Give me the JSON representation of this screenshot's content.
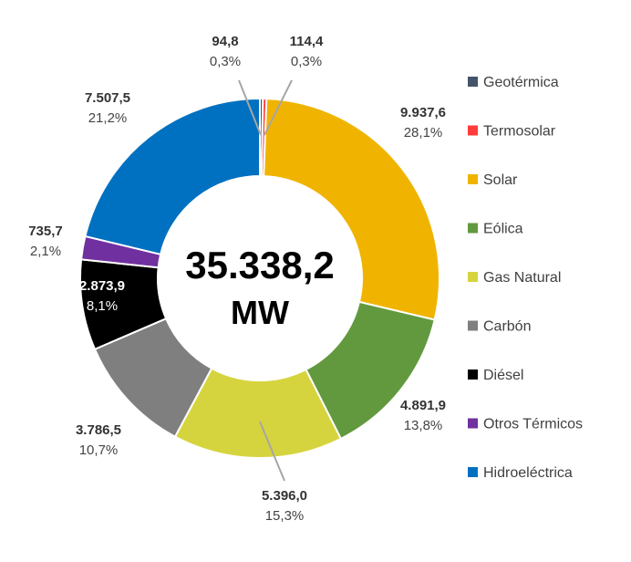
{
  "chart_data": {
    "type": "pie",
    "variant": "donut",
    "center_value": "35.338,2",
    "center_unit": "MW",
    "legend_position": "right",
    "series": [
      {
        "name": "Geotérmica",
        "value": 94.8,
        "value_label": "94,8",
        "pct_label": "0,3%",
        "color": "#44546A"
      },
      {
        "name": "Termosolar",
        "value": 114.4,
        "value_label": "114,4",
        "pct_label": "0,3%",
        "color": "#FF3B3B"
      },
      {
        "name": "Solar",
        "value": 9937.6,
        "value_label": "9.937,6",
        "pct_label": "28,1%",
        "color": "#F0B400"
      },
      {
        "name": "Eólica",
        "value": 4891.9,
        "value_label": "4.891,9",
        "pct_label": "13,8%",
        "color": "#62993E"
      },
      {
        "name": "Gas Natural",
        "value": 5396.0,
        "value_label": "5.396,0",
        "pct_label": "15,3%",
        "color": "#D6D43E"
      },
      {
        "name": "Carbón",
        "value": 3786.5,
        "value_label": "3.786,5",
        "pct_label": "10,7%",
        "color": "#7F7F7F"
      },
      {
        "name": "Diésel",
        "value": 2873.9,
        "value_label": "2.873,9",
        "pct_label": "8,1%",
        "color": "#000000"
      },
      {
        "name": "Otros Térmicos",
        "value": 735.7,
        "value_label": "735,7",
        "pct_label": "2,1%",
        "color": "#7030A0"
      },
      {
        "name": "Hidroeléctrica",
        "value": 7507.5,
        "value_label": "7.507,5",
        "pct_label": "21,2%",
        "color": "#0070C0"
      }
    ]
  }
}
